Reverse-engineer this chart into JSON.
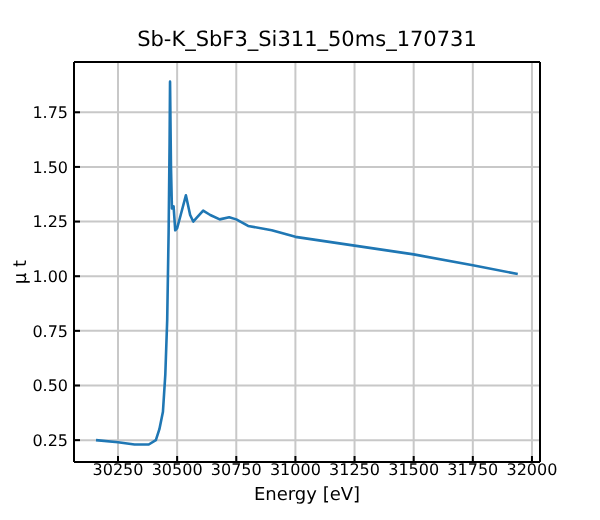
{
  "chart_data": {
    "type": "line",
    "title": "Sb-K_SbF3_Si311_50ms_170731",
    "xlabel": "Energy [eV]",
    "ylabel": "μ t",
    "x": [
      30157,
      30250,
      30320,
      30380,
      30410,
      30425,
      30440,
      30450,
      30458,
      30464,
      30468,
      30470,
      30474,
      30478,
      30485,
      30492,
      30500,
      30515,
      30537,
      30555,
      30568,
      30585,
      30610,
      30640,
      30680,
      30720,
      30750,
      30800,
      30900,
      31000,
      31250,
      31500,
      31750,
      31940
    ],
    "series": [
      {
        "color": "#1f77b4",
        "values": [
          0.25,
          0.24,
          0.23,
          0.23,
          0.25,
          0.3,
          0.38,
          0.55,
          0.8,
          1.2,
          1.6,
          1.89,
          1.5,
          1.31,
          1.32,
          1.21,
          1.22,
          1.28,
          1.37,
          1.28,
          1.25,
          1.27,
          1.3,
          1.28,
          1.26,
          1.27,
          1.26,
          1.23,
          1.21,
          1.18,
          1.14,
          1.1,
          1.05,
          1.01
        ]
      }
    ],
    "xlim": [
      30064,
      32034
    ],
    "ylim": [
      0.15,
      1.98
    ],
    "xticks": [
      30250,
      30500,
      30750,
      31000,
      31250,
      31500,
      31750,
      32000
    ],
    "yticks": [
      0.25,
      {
        "value": 0.5,
        "label": "0.50"
      },
      0.75,
      {
        "value": 1,
        "label": "1.00"
      },
      1.25,
      {
        "value": 1.5,
        "label": "1.50"
      },
      1.75
    ],
    "grid": true,
    "line_style": "solid",
    "marker": "none"
  }
}
